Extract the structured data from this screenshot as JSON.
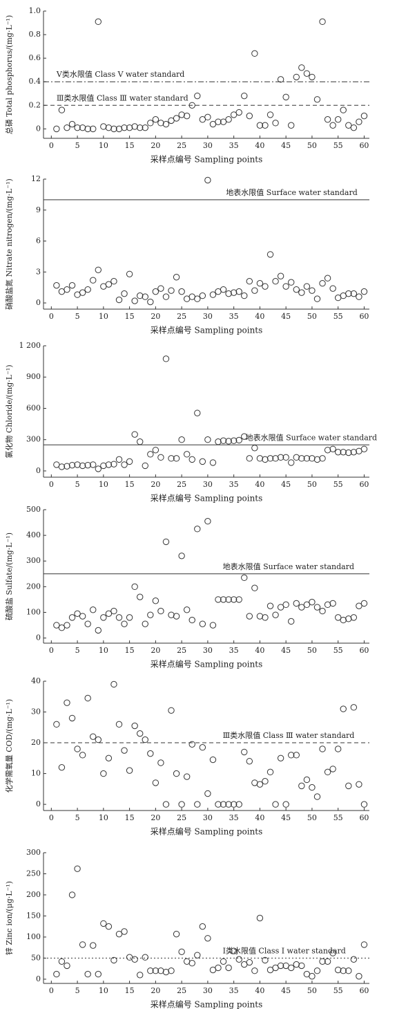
{
  "chart_data": [
    {
      "type": "scatter",
      "y_label": "总磷 Total phosphorus/(mg·L⁻¹)",
      "x_label": "采样点编号 Sampling points",
      "x": [
        1,
        2,
        3,
        4,
        5,
        6,
        7,
        8,
        9,
        10,
        11,
        12,
        13,
        14,
        15,
        16,
        17,
        18,
        19,
        20,
        21,
        22,
        23,
        24,
        25,
        26,
        27,
        28,
        29,
        30,
        31,
        32,
        33,
        34,
        35,
        36,
        37,
        38,
        39,
        40,
        41,
        42,
        43,
        44,
        45,
        46,
        47,
        48,
        49,
        50,
        51,
        52,
        53,
        54,
        55,
        56,
        57,
        58,
        59,
        60
      ],
      "values": [
        0.0,
        0.16,
        0.01,
        0.04,
        0.01,
        0.01,
        0.0,
        0.0,
        0.91,
        0.02,
        0.01,
        0.0,
        0.0,
        0.01,
        0.01,
        0.02,
        0.01,
        0.01,
        0.05,
        0.08,
        0.05,
        0.04,
        0.07,
        0.09,
        0.12,
        0.11,
        0.2,
        0.28,
        0.08,
        0.1,
        0.04,
        0.06,
        0.06,
        0.08,
        0.12,
        0.14,
        0.28,
        0.11,
        0.64,
        0.03,
        0.03,
        0.12,
        0.05,
        0.42,
        0.27,
        0.03,
        0.44,
        0.52,
        0.47,
        0.44,
        0.25,
        0.91,
        0.08,
        0.03,
        0.08,
        0.16,
        0.03,
        0.01,
        0.06,
        0.11
      ],
      "xlim": [
        -1.5,
        61
      ],
      "xticks": [
        0,
        10,
        20,
        30,
        40,
        50,
        60
      ],
      "xticks_minor": [
        5,
        15,
        25,
        35,
        45,
        55
      ],
      "ylim": [
        -0.08,
        1
      ],
      "yticks": [
        0,
        0.2,
        0.4,
        0.6,
        0.8,
        {
          "value": 1,
          "label": "1.0"
        }
      ],
      "reference_lines": [
        {
          "value": 0.4,
          "label": "Ⅴ类水限值 Class Ⅴ water standard",
          "style": "dashdot"
        },
        {
          "value": 0.2,
          "label": "Ⅲ类水限值 Class Ⅲ water standard",
          "style": "dashed"
        }
      ]
    },
    {
      "type": "scatter",
      "y_label": "硝酸盐氮 Nitrate nitrogen/(mg·L⁻¹)",
      "x_label": "采样点编号 Sampling points",
      "x": [
        1,
        2,
        3,
        4,
        5,
        6,
        7,
        8,
        9,
        10,
        11,
        12,
        13,
        14,
        15,
        16,
        17,
        18,
        19,
        20,
        21,
        22,
        23,
        24,
        25,
        26,
        27,
        28,
        29,
        30,
        31,
        32,
        33,
        34,
        35,
        36,
        37,
        38,
        39,
        40,
        41,
        42,
        43,
        44,
        45,
        46,
        47,
        48,
        49,
        50,
        51,
        52,
        53,
        54,
        55,
        56,
        57,
        58,
        59,
        60
      ],
      "values": [
        1.7,
        1.1,
        1.3,
        1.7,
        0.8,
        1.0,
        1.3,
        2.2,
        3.2,
        1.6,
        1.8,
        2.1,
        0.3,
        0.9,
        2.8,
        0.2,
        0.7,
        0.6,
        0.1,
        1.1,
        1.4,
        0.6,
        1.2,
        2.5,
        1.1,
        0.4,
        0.6,
        0.4,
        0.7,
        11.9,
        0.8,
        1.1,
        1.3,
        0.9,
        1.0,
        1.1,
        0.7,
        2.1,
        1.2,
        1.9,
        1.6,
        4.7,
        2.1,
        2.6,
        1.6,
        2.0,
        1.3,
        1.0,
        1.6,
        1.2,
        0.4,
        1.9,
        2.4,
        1.4,
        0.5,
        0.7,
        0.9,
        0.9,
        0.6,
        1.1
      ],
      "xlim": [
        -1.5,
        61
      ],
      "xticks": [
        0,
        10,
        20,
        30,
        40,
        50,
        60
      ],
      "xticks_minor": [
        5,
        15,
        25,
        35,
        45,
        55
      ],
      "ylim": [
        -0.6,
        12
      ],
      "yticks": [
        0,
        3,
        6,
        9,
        12
      ],
      "reference_lines": [
        {
          "value": 10,
          "label": "地表水限值 Surface water standard",
          "style": "solid"
        }
      ]
    },
    {
      "type": "scatter",
      "y_label": "氯化物 Chloride/(mg·L⁻¹)",
      "x_label": "采样点编号 Sampling points",
      "x": [
        1,
        2,
        3,
        4,
        5,
        6,
        7,
        8,
        9,
        10,
        11,
        12,
        13,
        14,
        15,
        16,
        17,
        18,
        19,
        20,
        21,
        22,
        23,
        24,
        25,
        26,
        27,
        28,
        29,
        30,
        31,
        32,
        33,
        34,
        35,
        36,
        37,
        38,
        39,
        40,
        41,
        42,
        43,
        44,
        45,
        46,
        47,
        48,
        49,
        50,
        51,
        52,
        53,
        54,
        55,
        56,
        57,
        58,
        59,
        60
      ],
      "values": [
        60,
        40,
        45,
        55,
        60,
        50,
        55,
        60,
        20,
        50,
        60,
        65,
        110,
        60,
        90,
        350,
        280,
        50,
        160,
        200,
        130,
        1075,
        120,
        120,
        300,
        160,
        110,
        555,
        90,
        300,
        80,
        280,
        290,
        285,
        290,
        295,
        330,
        120,
        220,
        120,
        110,
        120,
        120,
        130,
        130,
        80,
        130,
        120,
        120,
        120,
        110,
        120,
        200,
        210,
        180,
        180,
        175,
        180,
        190,
        210
      ],
      "xlim": [
        -1.5,
        61
      ],
      "xticks": [
        0,
        10,
        20,
        30,
        40,
        50,
        60
      ],
      "xticks_minor": [
        5,
        15,
        25,
        35,
        45,
        55
      ],
      "ylim": [
        -60,
        1200
      ],
      "yticks": [
        0,
        300,
        600,
        900,
        {
          "value": 1200,
          "label": "1 200"
        }
      ],
      "reference_lines": [
        {
          "value": 250,
          "label": "地表水限值 Surface water standard",
          "style": "solid"
        }
      ]
    },
    {
      "type": "scatter",
      "y_label": "硫酸盐 Sulfate/(mg·L⁻¹)",
      "x_label": "采样点编号 Sampling points",
      "x": [
        1,
        2,
        3,
        4,
        5,
        6,
        7,
        8,
        9,
        10,
        11,
        12,
        13,
        14,
        15,
        16,
        17,
        18,
        19,
        20,
        21,
        22,
        23,
        24,
        25,
        26,
        27,
        28,
        29,
        30,
        31,
        32,
        33,
        34,
        35,
        36,
        37,
        38,
        39,
        40,
        41,
        42,
        43,
        44,
        45,
        46,
        47,
        48,
        49,
        50,
        51,
        52,
        53,
        54,
        55,
        56,
        57,
        58,
        59,
        60
      ],
      "values": [
        50,
        40,
        50,
        80,
        95,
        85,
        55,
        110,
        30,
        80,
        95,
        105,
        80,
        55,
        80,
        200,
        160,
        55,
        90,
        145,
        105,
        375,
        90,
        85,
        320,
        110,
        70,
        425,
        55,
        455,
        50,
        150,
        150,
        150,
        150,
        150,
        235,
        85,
        195,
        85,
        80,
        125,
        90,
        120,
        130,
        65,
        135,
        120,
        130,
        140,
        120,
        105,
        130,
        135,
        80,
        70,
        75,
        80,
        125,
        135
      ],
      "xlim": [
        -1.5,
        61
      ],
      "xticks": [
        0,
        10,
        20,
        30,
        40,
        50,
        60
      ],
      "xticks_minor": [
        5,
        15,
        25,
        35,
        45,
        55
      ],
      "ylim": [
        -20,
        500
      ],
      "yticks": [
        0,
        100,
        200,
        300,
        400,
        500
      ],
      "reference_lines": [
        {
          "value": 250,
          "label": "地表水限值 Surface water standard",
          "style": "solid"
        }
      ]
    },
    {
      "type": "scatter",
      "y_label": "化学需氧量 COD/(mg·L⁻¹)",
      "x_label": "采样点编号 Sampling points",
      "x": [
        1,
        2,
        3,
        4,
        5,
        6,
        7,
        8,
        9,
        10,
        11,
        12,
        13,
        14,
        15,
        16,
        17,
        18,
        19,
        20,
        21,
        22,
        23,
        24,
        25,
        26,
        27,
        28,
        29,
        30,
        31,
        32,
        33,
        34,
        35,
        36,
        37,
        38,
        39,
        40,
        41,
        42,
        43,
        44,
        45,
        46,
        47,
        48,
        49,
        50,
        51,
        52,
        53,
        54,
        55,
        56,
        57,
        58,
        59,
        60
      ],
      "values": [
        26,
        12,
        33,
        28,
        18,
        16,
        34.5,
        22,
        21,
        10,
        15,
        39,
        26,
        17.5,
        11,
        25.5,
        23,
        21,
        16.5,
        7,
        13.5,
        0,
        30.5,
        10,
        0,
        9,
        19.5,
        0,
        18.5,
        3.5,
        14.5,
        0,
        0,
        0,
        0,
        0,
        17,
        14,
        7,
        6.5,
        7.5,
        10.5,
        0,
        15,
        0,
        16,
        16,
        6,
        8,
        5.5,
        2.5,
        18,
        10.5,
        11.5,
        18,
        31,
        6,
        31.5,
        6.5,
        0
      ],
      "xlim": [
        -1.5,
        61
      ],
      "xticks": [
        0,
        10,
        20,
        30,
        40,
        50,
        60
      ],
      "xticks_minor": [
        5,
        15,
        25,
        35,
        45,
        55
      ],
      "ylim": [
        -2,
        40
      ],
      "yticks": [
        0,
        10,
        20,
        30,
        40
      ],
      "reference_lines": [
        {
          "value": 20,
          "label": "Ⅲ类水限值 Class Ⅲ water standard",
          "style": "dashed"
        }
      ]
    },
    {
      "type": "scatter",
      "y_label": "锌 Zinc ion/(μg·L⁻¹)",
      "x_label": "采样点编号 Sampling points",
      "x": [
        1,
        2,
        3,
        4,
        5,
        6,
        7,
        8,
        9,
        10,
        11,
        12,
        13,
        14,
        15,
        16,
        17,
        18,
        19,
        20,
        21,
        22,
        23,
        24,
        25,
        26,
        27,
        28,
        29,
        30,
        31,
        32,
        33,
        34,
        35,
        36,
        37,
        38,
        39,
        40,
        41,
        42,
        43,
        44,
        45,
        46,
        47,
        48,
        49,
        50,
        51,
        52,
        53,
        54,
        55,
        56,
        57,
        58,
        59,
        60
      ],
      "values": [
        12,
        42,
        32,
        200,
        262,
        82,
        12,
        80,
        12,
        132,
        125,
        45,
        107,
        113,
        52,
        47,
        10,
        52,
        20,
        20,
        20,
        17,
        20,
        107,
        65,
        42,
        38,
        57,
        125,
        97,
        22,
        27,
        42,
        27,
        67,
        47,
        35,
        40,
        20,
        145,
        45,
        22,
        27,
        32,
        32,
        27,
        35,
        32,
        12,
        7,
        20,
        42,
        42,
        62,
        22,
        20,
        20,
        47,
        7,
        82
      ],
      "xlim": [
        -1.5,
        61
      ],
      "xticks": [
        0,
        10,
        20,
        30,
        40,
        50,
        60
      ],
      "xticks_minor": [
        5,
        15,
        25,
        35,
        45,
        55
      ],
      "ylim": [
        -10,
        300
      ],
      "yticks": [
        0,
        50,
        100,
        150,
        200,
        250,
        300
      ],
      "reference_lines": [
        {
          "value": 50,
          "label": "Ⅰ类水限值 Class Ⅰ water standard",
          "style": "dotted"
        }
      ]
    }
  ]
}
